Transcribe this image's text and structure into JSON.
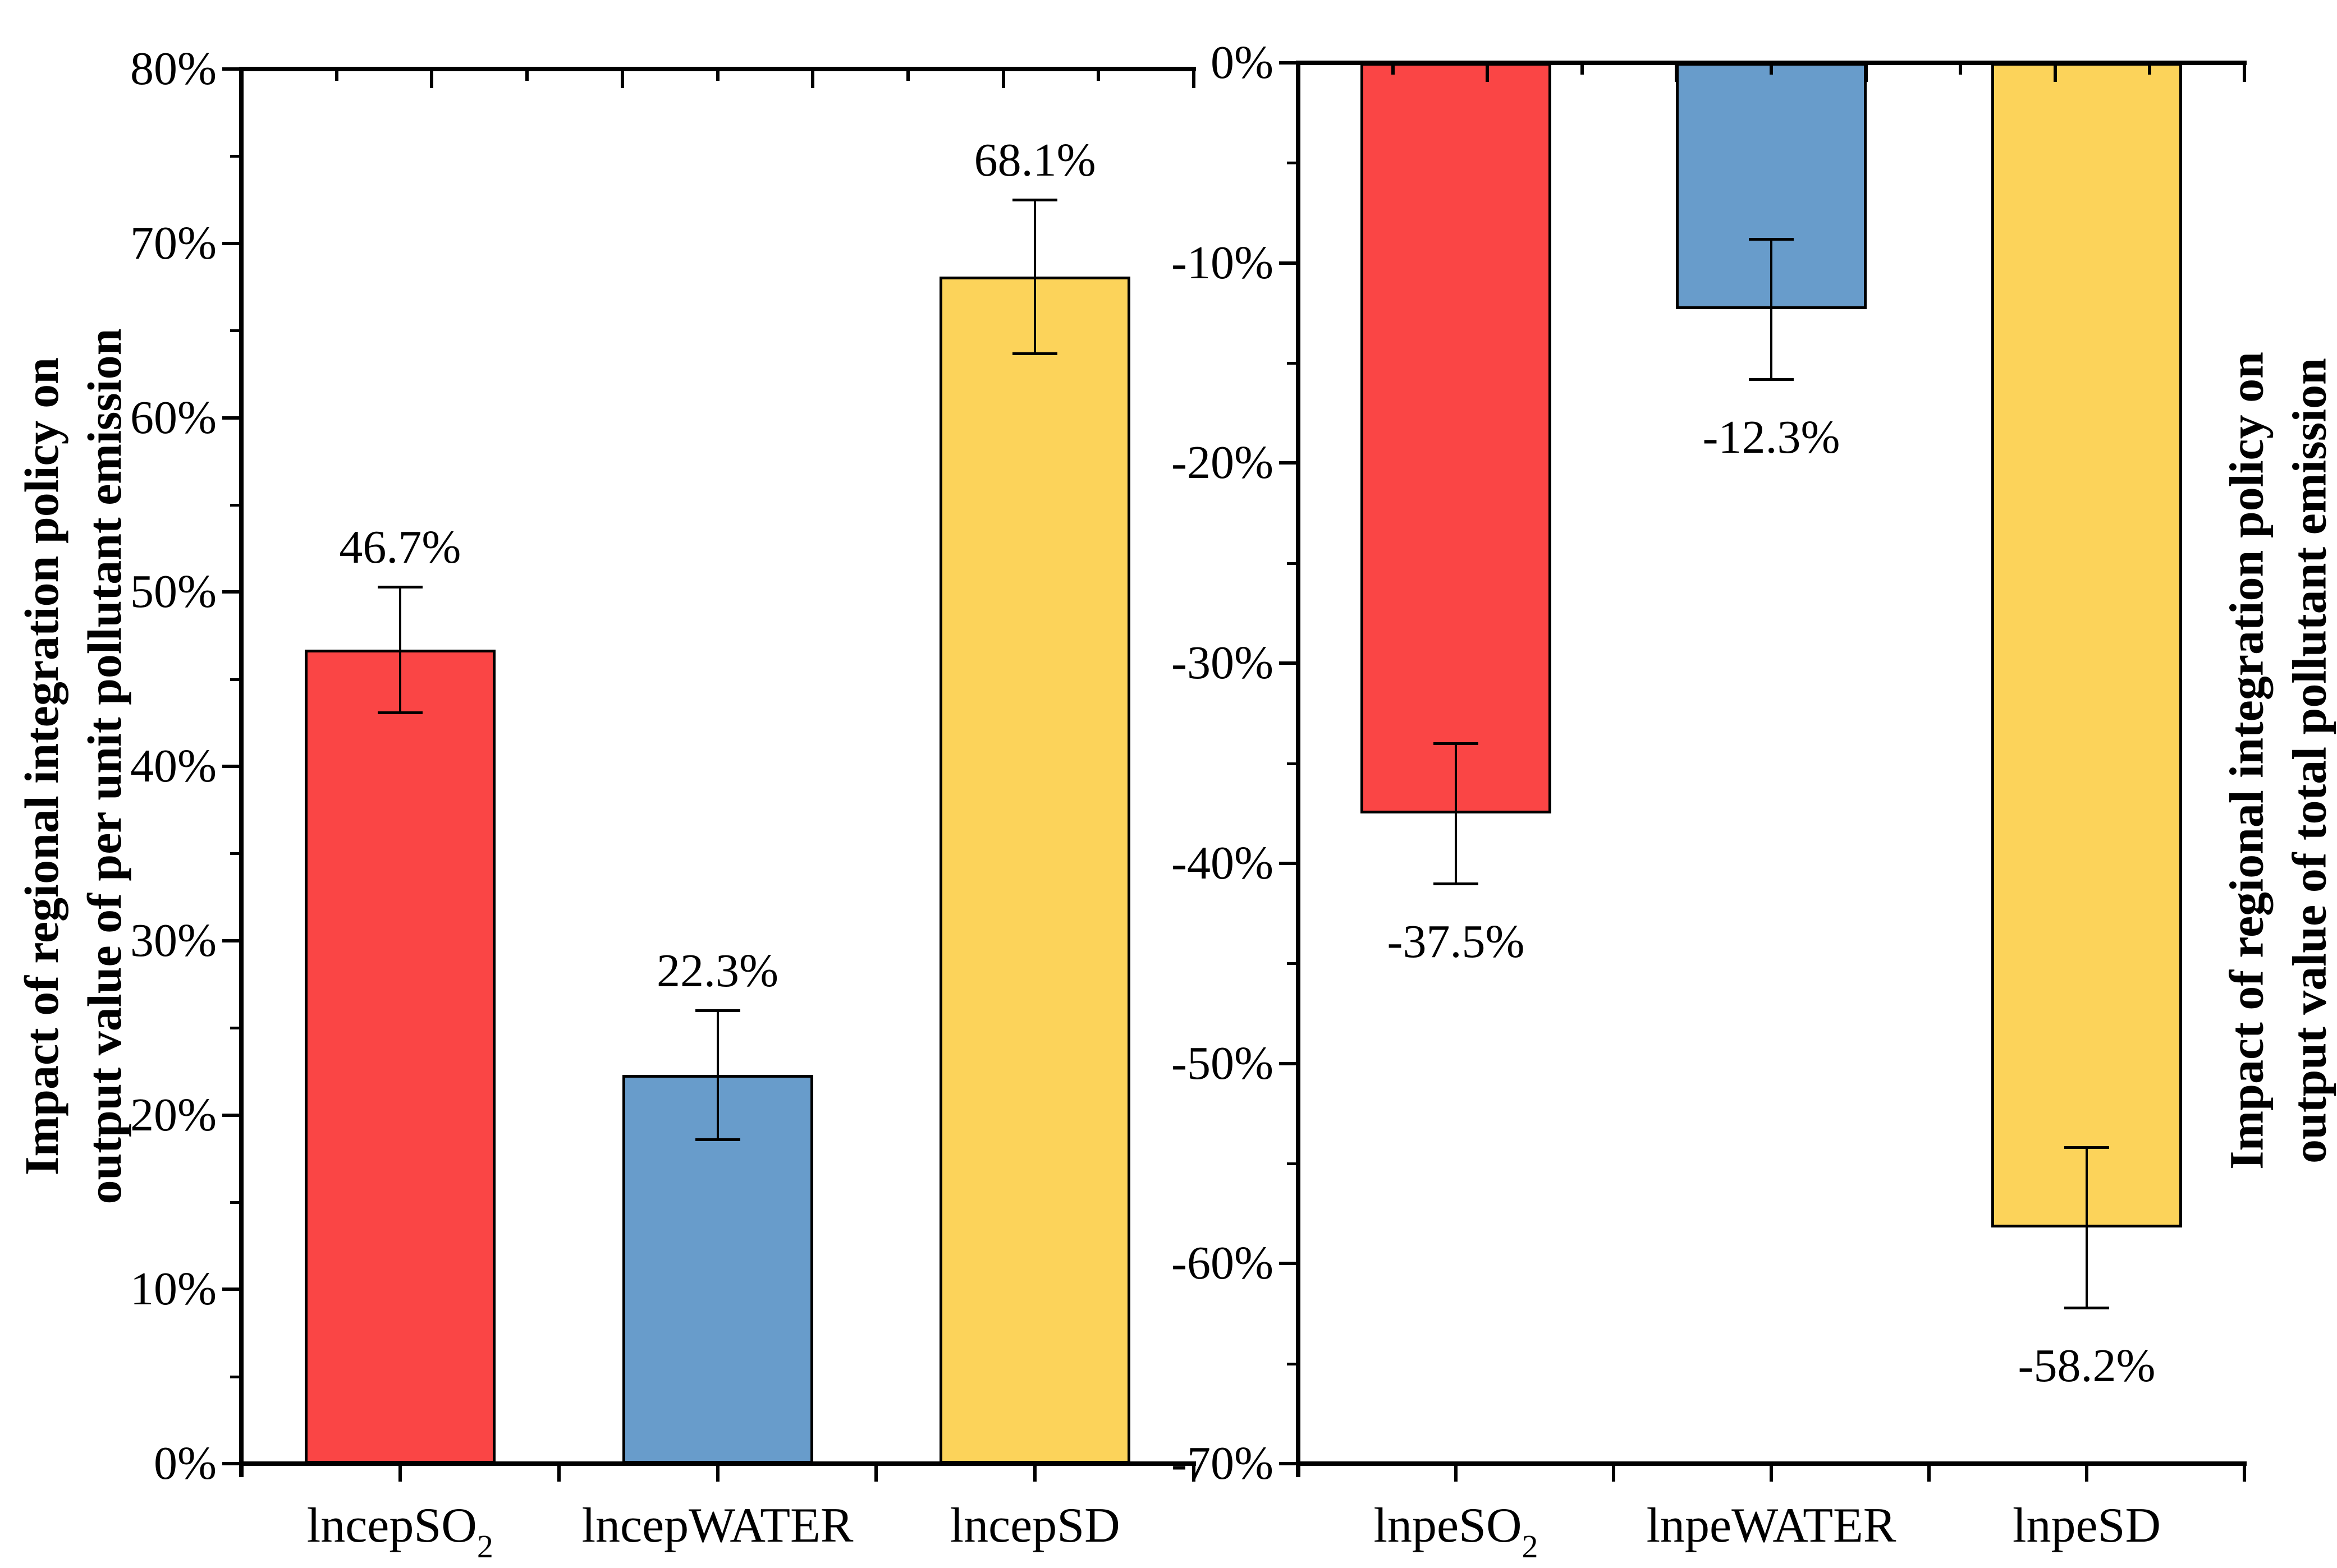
{
  "figure": {
    "background": "#ffffff"
  },
  "colors": {
    "bar_red": "#FA4545",
    "bar_blue": "#689CCB",
    "bar_yellow": "#FCD35A",
    "bar_border": "#000000",
    "axis": "#000000",
    "text": "#000000"
  },
  "chart_data": [
    {
      "type": "bar",
      "position": "left",
      "ylabel_lines": [
        "Impact of regional integration policy on",
        "output value of per unit pollutant emission"
      ],
      "categories": [
        {
          "base": "lncepSO",
          "sub": "2"
        },
        {
          "base": "lncepWATER",
          "sub": ""
        },
        {
          "base": "lncepSD",
          "sub": ""
        }
      ],
      "values": [
        46.7,
        22.3,
        68.1
      ],
      "errors": [
        3.6,
        3.7,
        4.4
      ],
      "value_labels": [
        "46.7%",
        "22.3%",
        "68.1%"
      ],
      "bar_colors": [
        "#FA4545",
        "#689CCB",
        "#FCD35A"
      ],
      "ylim": [
        0,
        80
      ],
      "ytick_step": 10,
      "ytick_labels_top_to_bottom": [
        "80%",
        "70%",
        "60%",
        "50%",
        "40%",
        "30%",
        "20%",
        "10%",
        "0%"
      ],
      "grid": false,
      "legend": "none"
    },
    {
      "type": "bar",
      "position": "right",
      "ylabel_lines": [
        "Impact of regional integration policy on",
        "output value of total pollutant emission"
      ],
      "categories": [
        {
          "base": "lnpeSO",
          "sub": "2"
        },
        {
          "base": "lnpeWATER",
          "sub": ""
        },
        {
          "base": "lnpeSD",
          "sub": ""
        }
      ],
      "values": [
        -37.5,
        -12.3,
        -58.2
      ],
      "errors": [
        3.5,
        3.5,
        4.0
      ],
      "value_labels": [
        "-37.5%",
        "-12.3%",
        "-58.2%"
      ],
      "bar_colors": [
        "#FA4545",
        "#689CCB",
        "#FCD35A"
      ],
      "ylim": [
        -70,
        0
      ],
      "ytick_step": 10,
      "ytick_labels_top_to_bottom": [
        "0%",
        "-10%",
        "-20%",
        "-30%",
        "-40%",
        "-50%",
        "-60%",
        "-70%"
      ],
      "grid": false,
      "legend": "none"
    }
  ]
}
